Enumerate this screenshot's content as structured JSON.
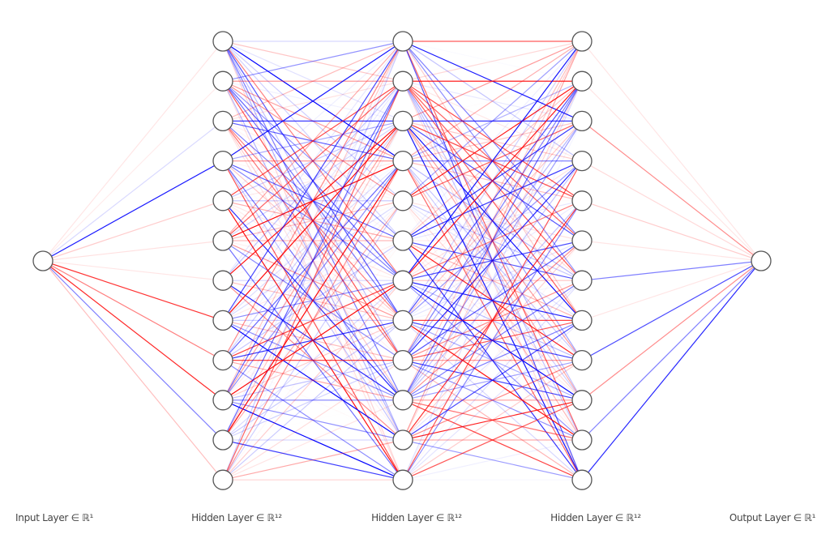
{
  "layers": [
    {
      "label": "Input Layer ∈ ℝ¹",
      "size": 1
    },
    {
      "label": "Hidden Layer ∈ ℝ¹²",
      "size": 12
    },
    {
      "label": "Hidden Layer ∈ ℝ¹²",
      "size": 12
    },
    {
      "label": "Hidden Layer ∈ ℝ¹²",
      "size": 12
    },
    {
      "label": "Output Layer ∈ ℝ¹",
      "size": 1
    }
  ],
  "colors": {
    "positive": "#0000ff",
    "negative": "#ff0000",
    "node_stroke": "#555555",
    "node_fill": "#ffffff"
  },
  "input_weights": [
    -0.1,
    -0.08,
    0.15,
    0.9,
    -0.2,
    -0.12,
    -0.1,
    -0.8,
    -0.5,
    -0.85,
    0.5,
    -0.25
  ],
  "output_weights": [
    -0.1,
    -0.1,
    -0.45,
    -0.15,
    -0.2,
    -0.1,
    0.5,
    -0.1,
    0.7,
    -0.45,
    0.5,
    0.85
  ],
  "hidden_seed": 12345
}
